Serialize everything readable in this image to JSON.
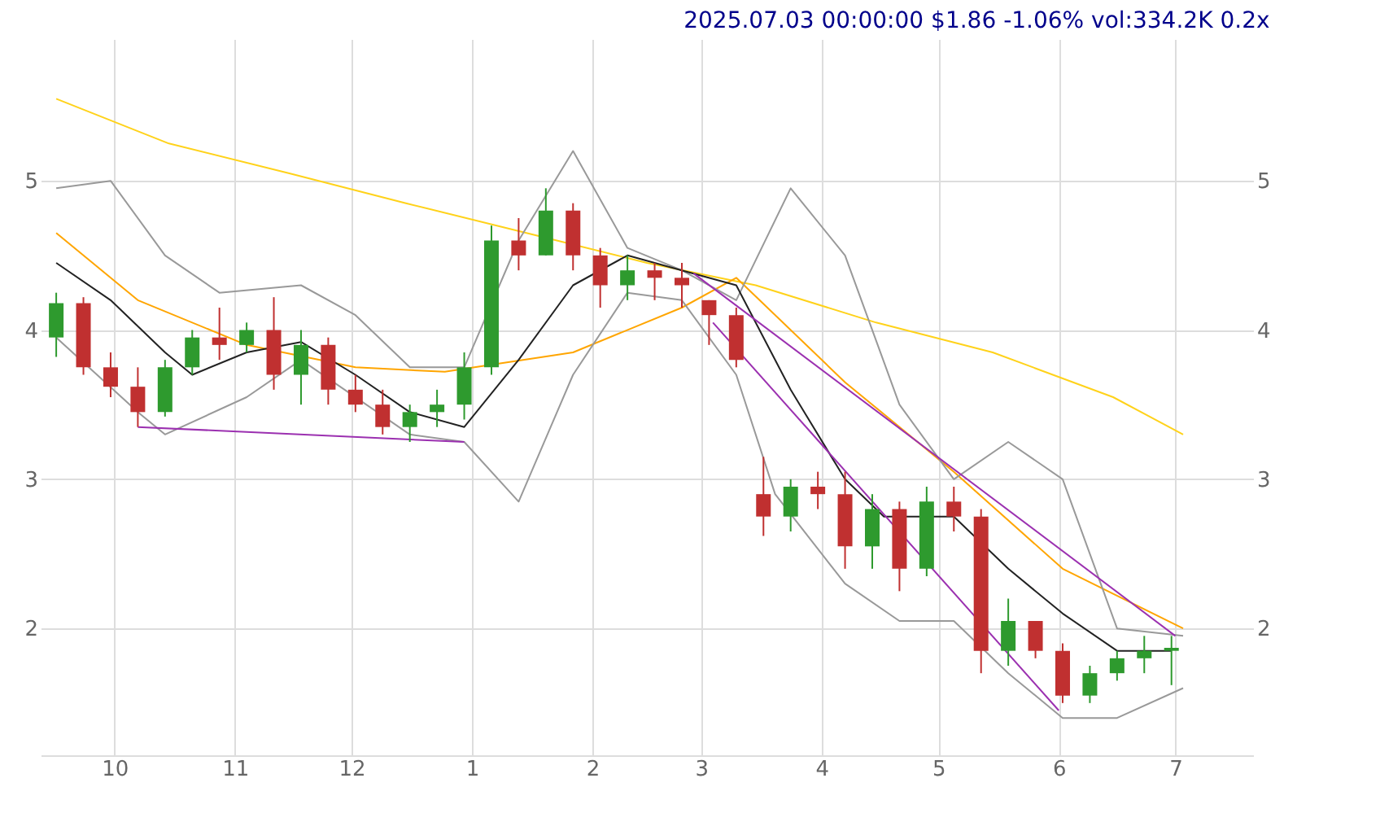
{
  "chart_data": {
    "type": "candlestick",
    "title": "2025.07.03 00:00:00 $1.86 -1.06% vol:334.2K 0.2x",
    "x": [
      "2024-09-16",
      "2024-09-23",
      "2024-09-30",
      "2024-10-07",
      "2024-10-14",
      "2024-10-21",
      "2024-10-28",
      "2024-11-04",
      "2024-11-11",
      "2024-11-18",
      "2024-11-25",
      "2024-12-02",
      "2024-12-09",
      "2024-12-16",
      "2024-12-23",
      "2024-12-30",
      "2025-01-06",
      "2025-01-13",
      "2025-01-20",
      "2025-01-27",
      "2025-02-03",
      "2025-02-10",
      "2025-02-17",
      "2025-02-24",
      "2025-03-03",
      "2025-03-10",
      "2025-03-17",
      "2025-03-24",
      "2025-03-31",
      "2025-04-07",
      "2025-04-14",
      "2025-04-21",
      "2025-04-28",
      "2025-05-05",
      "2025-05-12",
      "2025-05-19",
      "2025-05-26",
      "2025-06-02",
      "2025-06-09",
      "2025-06-16",
      "2025-06-23",
      "2025-06-30"
    ],
    "ohlc": [
      [
        3.95,
        4.25,
        3.82,
        4.18
      ],
      [
        4.18,
        4.22,
        3.7,
        3.75
      ],
      [
        3.75,
        3.85,
        3.55,
        3.62
      ],
      [
        3.62,
        3.75,
        3.35,
        3.45
      ],
      [
        3.45,
        3.8,
        3.42,
        3.75
      ],
      [
        3.75,
        4.0,
        3.7,
        3.95
      ],
      [
        3.95,
        4.15,
        3.8,
        3.9
      ],
      [
        3.9,
        4.05,
        3.85,
        4.0
      ],
      [
        4.0,
        4.22,
        3.6,
        3.7
      ],
      [
        3.7,
        4.0,
        3.5,
        3.9
      ],
      [
        3.9,
        3.95,
        3.5,
        3.6
      ],
      [
        3.6,
        3.7,
        3.45,
        3.5
      ],
      [
        3.5,
        3.6,
        3.3,
        3.35
      ],
      [
        3.35,
        3.5,
        3.25,
        3.45
      ],
      [
        3.45,
        3.6,
        3.35,
        3.5
      ],
      [
        3.5,
        3.85,
        3.4,
        3.75
      ],
      [
        3.75,
        4.7,
        3.7,
        4.6
      ],
      [
        4.6,
        4.75,
        4.4,
        4.5
      ],
      [
        4.5,
        4.95,
        4.5,
        4.8
      ],
      [
        4.8,
        4.85,
        4.4,
        4.5
      ],
      [
        4.5,
        4.55,
        4.15,
        4.3
      ],
      [
        4.3,
        4.5,
        4.2,
        4.4
      ],
      [
        4.4,
        4.45,
        4.2,
        4.35
      ],
      [
        4.35,
        4.45,
        4.15,
        4.3
      ],
      [
        4.2,
        4.2,
        3.9,
        4.1
      ],
      [
        4.1,
        4.15,
        3.75,
        3.8
      ],
      [
        2.9,
        3.15,
        2.62,
        2.75
      ],
      [
        2.75,
        3.0,
        2.65,
        2.95
      ],
      [
        2.95,
        3.05,
        2.8,
        2.9
      ],
      [
        2.9,
        3.05,
        2.4,
        2.55
      ],
      [
        2.55,
        2.9,
        2.4,
        2.8
      ],
      [
        2.8,
        2.85,
        2.25,
        2.4
      ],
      [
        2.4,
        2.95,
        2.35,
        2.85
      ],
      [
        2.85,
        2.95,
        2.65,
        2.75
      ],
      [
        2.75,
        2.8,
        1.7,
        1.85
      ],
      [
        1.85,
        2.2,
        1.75,
        2.05
      ],
      [
        2.05,
        2.05,
        1.8,
        1.85
      ],
      [
        1.85,
        1.9,
        1.5,
        1.55
      ],
      [
        1.55,
        1.75,
        1.5,
        1.7
      ],
      [
        1.7,
        1.85,
        1.65,
        1.8
      ],
      [
        1.8,
        1.95,
        1.7,
        1.85
      ],
      [
        1.85,
        1.95,
        1.62,
        1.87
      ]
    ],
    "colors": [
      "#2e9a2e",
      "#c03030",
      "#c03030",
      "#c03030",
      "#2e9a2e",
      "#2e9a2e",
      "#c03030",
      "#2e9a2e",
      "#c03030",
      "#2e9a2e",
      "#c03030",
      "#c03030",
      "#c03030",
      "#2e9a2e",
      "#2e9a2e",
      "#2e9a2e",
      "#2e9a2e",
      "#c03030",
      "#2e9a2e",
      "#c03030",
      "#c03030",
      "#2e9a2e",
      "#c03030",
      "#c03030",
      "#c03030",
      "#c03030",
      "#c03030",
      "#2e9a2e",
      "#c03030",
      "#c03030",
      "#2e9a2e",
      "#c03030",
      "#2e9a2e",
      "#c03030",
      "#c03030",
      "#2e9a2e",
      "#c03030",
      "#c03030",
      "#2e9a2e",
      "#2e9a2e",
      "#2e9a2e",
      "#2e9a2e"
    ],
    "series": [
      {
        "type": "line",
        "color": "#ffd21a",
        "x": [
          "2024-09-16",
          "2024-10-15",
          "2024-11-15",
          "2024-12-15",
          "2025-01-15",
          "2025-02-15",
          "2025-03-15",
          "2025-04-15",
          "2025-05-15",
          "2025-06-15",
          "2025-07-03"
        ],
        "values": [
          5.55,
          5.25,
          5.05,
          4.85,
          4.65,
          4.45,
          4.3,
          4.05,
          3.85,
          3.55,
          3.3
        ]
      },
      {
        "type": "line",
        "color": "#ffa500",
        "x": [
          "2024-09-16",
          "2024-10-07",
          "2024-11-04",
          "2024-12-02",
          "2024-12-25",
          "2025-01-27",
          "2025-02-24",
          "2025-03-10",
          "2025-04-07",
          "2025-05-05",
          "2025-06-02",
          "2025-07-03"
        ],
        "values": [
          4.65,
          4.2,
          3.9,
          3.75,
          3.72,
          3.85,
          4.15,
          4.35,
          3.65,
          3.05,
          2.4,
          2.0
        ]
      },
      {
        "type": "line",
        "color": "#999999",
        "x": [
          "2024-09-16",
          "2024-09-30",
          "2024-10-14",
          "2024-10-28",
          "2024-11-18",
          "2024-12-02",
          "2024-12-16",
          "2024-12-30",
          "2025-01-13",
          "2025-01-27",
          "2025-02-10",
          "2025-02-24",
          "2025-03-10",
          "2025-03-24",
          "2025-04-07",
          "2025-04-21",
          "2025-05-05",
          "2025-05-19",
          "2025-06-02",
          "2025-06-16",
          "2025-07-03"
        ],
        "values": [
          4.95,
          5.0,
          4.5,
          4.25,
          4.3,
          4.1,
          3.75,
          3.75,
          4.6,
          5.2,
          4.55,
          4.4,
          4.2,
          4.95,
          4.5,
          3.5,
          3.0,
          3.25,
          3.0,
          2.0,
          1.95
        ]
      },
      {
        "type": "line",
        "color": "#999999",
        "x": [
          "2024-09-16",
          "2024-10-07",
          "2024-10-14",
          "2024-11-04",
          "2024-11-18",
          "2024-12-16",
          "2024-12-30",
          "2025-01-13",
          "2025-01-27",
          "2025-02-10",
          "2025-02-24",
          "2025-03-10",
          "2025-03-20",
          "2025-04-07",
          "2025-04-21",
          "2025-05-05",
          "2025-05-19",
          "2025-06-02",
          "2025-06-16",
          "2025-07-03"
        ],
        "values": [
          3.95,
          3.45,
          3.3,
          3.55,
          3.8,
          3.3,
          3.25,
          2.85,
          3.7,
          4.25,
          4.2,
          3.7,
          2.9,
          2.3,
          2.05,
          2.05,
          1.7,
          1.4,
          1.4,
          1.6
        ]
      },
      {
        "type": "line",
        "color": "#222222",
        "x": [
          "2024-09-16",
          "2024-09-30",
          "2024-10-14",
          "2024-10-21",
          "2024-11-04",
          "2024-11-18",
          "2024-12-02",
          "2024-12-16",
          "2024-12-30",
          "2025-01-13",
          "2025-01-27",
          "2025-02-10",
          "2025-02-24",
          "2025-03-10",
          "2025-03-24",
          "2025-04-07",
          "2025-04-17",
          "2025-05-05",
          "2025-05-19",
          "2025-06-02",
          "2025-06-16",
          "2025-06-30"
        ],
        "values": [
          4.45,
          4.2,
          3.85,
          3.7,
          3.85,
          3.92,
          3.7,
          3.45,
          3.35,
          3.8,
          4.3,
          4.5,
          4.4,
          4.3,
          3.6,
          3.0,
          2.75,
          2.75,
          2.4,
          2.1,
          1.85,
          1.85
        ]
      },
      {
        "type": "line",
        "color": "#9b30b0",
        "x": [
          "2025-02-27",
          "2025-07-01"
        ],
        "values": [
          4.38,
          1.95
        ]
      },
      {
        "type": "line",
        "color": "#9b30b0",
        "x": [
          "2025-03-04",
          "2025-06-01"
        ],
        "values": [
          4.05,
          1.45
        ]
      },
      {
        "type": "line",
        "color": "#9b30b0",
        "x": [
          "2024-10-07",
          "2024-12-30"
        ],
        "values": [
          3.35,
          3.25
        ]
      }
    ],
    "xlim": [
      "2024-09-12",
      "2025-07-21"
    ],
    "xticks": [
      {
        "value": "2024-10-01",
        "label": "10"
      },
      {
        "value": "2024-11-01",
        "label": "11"
      },
      {
        "value": "2024-12-01",
        "label": "12"
      },
      {
        "value": "2025-01-01",
        "label": "1"
      },
      {
        "value": "2025-02-01",
        "label": "2"
      },
      {
        "value": "2025-03-01",
        "label": "3"
      },
      {
        "value": "2025-04-01",
        "label": "4"
      },
      {
        "value": "2025-05-01",
        "label": "5"
      },
      {
        "value": "2025-06-01",
        "label": "6"
      },
      {
        "value": "2025-07-01",
        "label": "7"
      }
    ],
    "ylim": [
      1.15,
      5.95
    ],
    "yticks": [
      2,
      3,
      4,
      5
    ],
    "y2lim": [
      1.15,
      5.95
    ],
    "y2ticks": [
      2,
      3,
      4,
      5
    ],
    "grid": true,
    "marker": "none"
  }
}
